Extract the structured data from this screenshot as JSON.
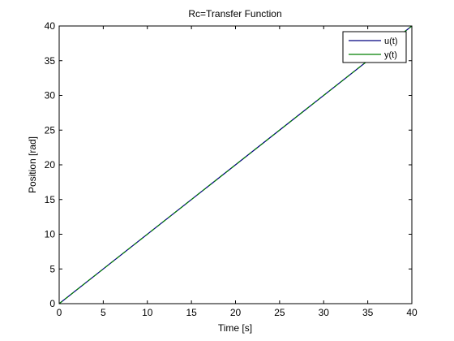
{
  "chart_data": {
    "type": "line",
    "title": "Rc=Transfer Function",
    "xlabel": "Time [s]",
    "ylabel": "Position [rad]",
    "xlim": [
      0,
      40
    ],
    "ylim": [
      0,
      40
    ],
    "xticks": [
      0,
      5,
      10,
      15,
      20,
      25,
      30,
      35,
      40
    ],
    "yticks": [
      0,
      5,
      10,
      15,
      20,
      25,
      30,
      35,
      40
    ],
    "grid": false,
    "legend_position": "top-right",
    "series": [
      {
        "name": "u(t)",
        "color": "#00007f",
        "x": [
          0,
          40
        ],
        "y": [
          0,
          40
        ]
      },
      {
        "name": "y(t)",
        "color": "#007f00",
        "x": [
          0,
          40
        ],
        "y": [
          0,
          40
        ]
      }
    ]
  }
}
